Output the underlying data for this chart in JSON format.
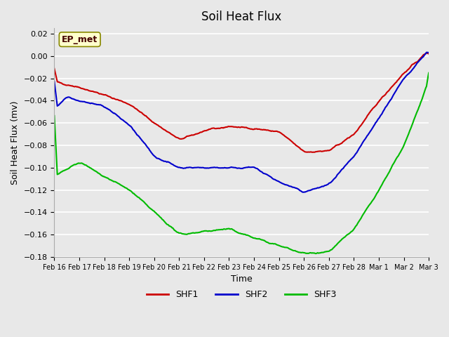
{
  "title": "Soil Heat Flux",
  "xlabel": "Time",
  "ylabel": "Soil Heat Flux (mv)",
  "ylim": [
    -0.18,
    0.025
  ],
  "yticks": [
    0.02,
    0.0,
    -0.02,
    -0.04,
    -0.06,
    -0.08,
    -0.1,
    -0.12,
    -0.14,
    -0.16,
    -0.18
  ],
  "bg_color": "#e8e8e8",
  "plot_bg_color": "#e8e8e8",
  "grid_color": "#ffffff",
  "shf1_color": "#cc0000",
  "shf2_color": "#0000cc",
  "shf3_color": "#00bb00",
  "annotation_text": "EP_met",
  "annotation_bg": "#ffffcc",
  "annotation_border": "#888800",
  "x_labels": [
    "Feb 16",
    "Feb 17",
    "Feb 18",
    "Feb 19",
    "Feb 20",
    "Feb 21",
    "Feb 22",
    "Feb 23",
    "Feb 24",
    "Feb 25",
    "Feb 26",
    "Feb 27",
    "Feb 28",
    "Mar 1",
    "Mar 2",
    "Mar 3"
  ],
  "shf1_pts_x": [
    0,
    1,
    2,
    3,
    4,
    5,
    6,
    7,
    8,
    9,
    10,
    11,
    12,
    13,
    14,
    15
  ],
  "shf1_pts_y": [
    -0.023,
    -0.028,
    -0.035,
    -0.043,
    -0.06,
    -0.075,
    -0.067,
    -0.063,
    -0.065,
    -0.068,
    -0.086,
    -0.085,
    -0.07,
    -0.04,
    -0.015,
    0.005
  ],
  "shf2_pts_x": [
    0,
    0.5,
    1,
    2,
    3,
    4,
    5,
    6,
    7,
    8,
    9,
    10,
    11,
    12,
    13,
    14,
    15
  ],
  "shf2_pts_y": [
    -0.047,
    -0.036,
    -0.04,
    -0.045,
    -0.062,
    -0.09,
    -0.1,
    -0.1,
    -0.1,
    -0.1,
    -0.113,
    -0.122,
    -0.115,
    -0.09,
    -0.055,
    -0.02,
    0.006
  ],
  "shf3_pts_x": [
    0,
    1,
    2,
    3,
    4,
    5,
    6,
    7,
    8,
    9,
    10,
    11,
    12,
    13,
    14,
    15
  ],
  "shf3_pts_y": [
    -0.108,
    -0.095,
    -0.108,
    -0.12,
    -0.14,
    -0.16,
    -0.157,
    -0.155,
    -0.163,
    -0.17,
    -0.177,
    -0.175,
    -0.155,
    -0.12,
    -0.08,
    -0.022
  ]
}
